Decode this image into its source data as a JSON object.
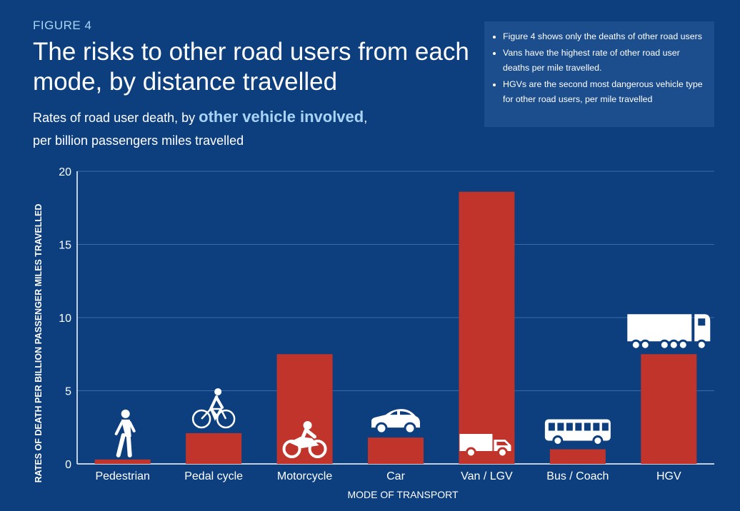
{
  "figure_label": "FIGURE 4",
  "title": "The risks to other road users from each mode, by distance travelled",
  "subtitle": {
    "part1": "Rates of road user death, by ",
    "highlight": "other vehicle involved",
    "part2": ",",
    "line2": "per billion passengers miles travelled"
  },
  "notes": [
    "Figure 4 shows only the deaths of other road users",
    "Vans have the highest rate of other road user deaths per mile travelled.",
    "HGVs are the second most dangerous vehicle type for other road users, per mile travelled"
  ],
  "colors": {
    "background": "#0d3f7f",
    "bar": "#c0342b",
    "accent": "#a9d4f5",
    "notes_bg": "#1c4d8c"
  },
  "chart_data": {
    "type": "bar",
    "categories": [
      "Pedestrian",
      "Pedal cycle",
      "Motorcycle",
      "Car",
      "Van / LGV",
      "Bus / Coach",
      "HGV"
    ],
    "values": [
      0.3,
      2.1,
      7.5,
      1.8,
      18.6,
      1.0,
      7.5
    ],
    "icons": [
      "pedestrian-icon",
      "bicycle-icon",
      "motorcycle-icon",
      "car-icon",
      "van-icon",
      "bus-icon",
      "truck-icon"
    ],
    "title": "The risks to other road users from each mode, by distance travelled",
    "xlabel": "MODE OF TRANSPORT",
    "ylabel": "RATES OF DEATH PER BILLION PASSENGER MILES TRAVELLED",
    "ylim": [
      0,
      20
    ],
    "yticks": [
      0,
      5,
      10,
      15,
      20
    ],
    "grid": true,
    "legend": "none"
  }
}
